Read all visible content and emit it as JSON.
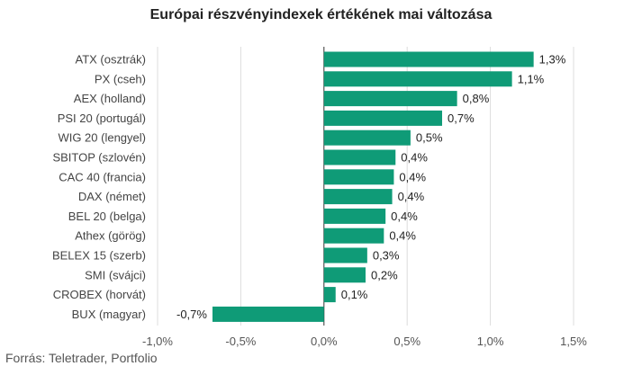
{
  "chart_data": {
    "type": "bar",
    "orientation": "horizontal",
    "title": "Európai részvényindexek értékének mai változása",
    "categories": [
      "ATX (osztrák)",
      "PX (cseh)",
      "AEX (holland)",
      "PSI 20 (portugál)",
      "WIG 20 (lengyel)",
      "SBITOP (szlovén)",
      "CAC 40 (francia)",
      "DAX (német)",
      "BEL 20 (belga)",
      "Athex (görög)",
      "BELEX 15 (szerb)",
      "SMI (svájci)",
      "CROBEX (horvát)",
      "BUX (magyar)"
    ],
    "values": [
      1.26,
      1.13,
      0.8,
      0.71,
      0.52,
      0.43,
      0.42,
      0.41,
      0.37,
      0.36,
      0.26,
      0.25,
      0.07,
      -0.67
    ],
    "value_labels": [
      "1,3%",
      "1,1%",
      "0,8%",
      "0,7%",
      "0,5%",
      "0,4%",
      "0,4%",
      "0,4%",
      "0,4%",
      "0,4%",
      "0,3%",
      "0,2%",
      "0,1%",
      "-0,7%"
    ],
    "xlim": [
      -1.0,
      1.5
    ],
    "xticks": [
      -1.0,
      -0.5,
      0.0,
      0.5,
      1.0,
      1.5
    ],
    "xtick_labels": [
      "-1,0%",
      "-0,5%",
      "0,0%",
      "0,5%",
      "1,0%",
      "1,5%"
    ],
    "grid": "vertical",
    "bar_color": "#0f9b77",
    "source": "Forrás: Teletrader, Portfolio"
  }
}
